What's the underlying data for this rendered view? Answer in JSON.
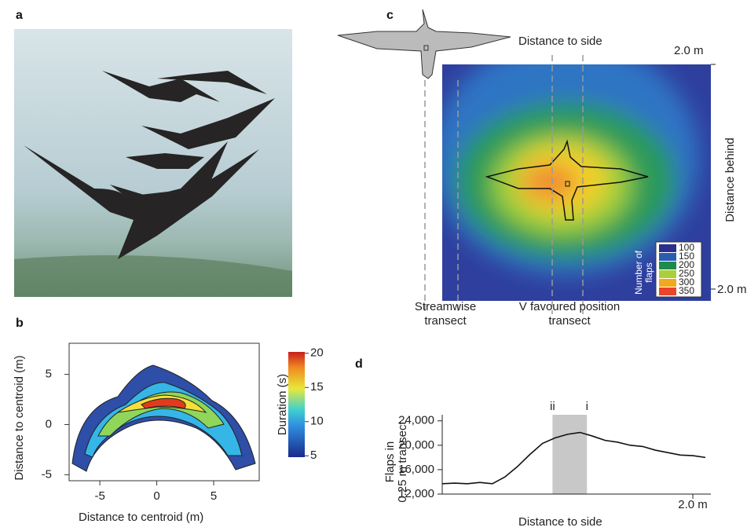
{
  "panels": {
    "a": {
      "label": "a"
    },
    "b": {
      "label": "b",
      "xlabel": "Distance to centroid (m)",
      "ylabel": "Distance to centroid (m)",
      "xlim": [
        -7.7,
        9
      ],
      "xticks": [
        -5,
        0,
        5
      ],
      "ylim": [
        -5.6,
        8.1
      ],
      "yticks": [
        -5,
        0,
        5
      ],
      "colorbar": {
        "label": "Duration (s)",
        "lim": [
          4.8,
          20.2
        ],
        "ticks": [
          5,
          10,
          15,
          20
        ]
      }
    },
    "c": {
      "label": "c",
      "top_label": "Distance to side",
      "top_right": "2.0 m",
      "right_label": "Distance behind",
      "bottom_right": "2.0 m",
      "streamwise": "Streamwise transect",
      "v_position": "V favoured position transect",
      "legend": {
        "title": "Number of flaps",
        "levels": [
          {
            "value": 100,
            "color": "#2b2e8c"
          },
          {
            "value": 150,
            "color": "#2a5db0"
          },
          {
            "value": 200,
            "color": "#1f8a4c"
          },
          {
            "value": 250,
            "color": "#a9cf3c"
          },
          {
            "value": 300,
            "color": "#f4a81d"
          },
          {
            "value": 350,
            "color": "#e8452c"
          }
        ]
      }
    },
    "d": {
      "label": "d",
      "ylabel_1": "Flaps in",
      "ylabel_2": "0.25 m transect",
      "xlabel": "Distance to side",
      "xlim": [
        0,
        2.144
      ],
      "xticks": [
        {
          "value": 2.0,
          "label": "2.0 m"
        }
      ],
      "ylim": [
        12000,
        25000
      ],
      "yticks": [
        {
          "value": 12000,
          "label": "12,000"
        },
        {
          "value": 16000,
          "label": "16,000"
        },
        {
          "value": 20000,
          "label": "20,000"
        },
        {
          "value": 24000,
          "label": "24,000"
        }
      ],
      "band": [
        0.88,
        1.155
      ],
      "band_labels": [
        "ii",
        "i"
      ],
      "x": [
        0,
        0.1,
        0.2,
        0.3,
        0.4,
        0.5,
        0.6,
        0.7,
        0.8,
        0.9,
        1.0,
        1.1,
        1.2,
        1.3,
        1.4,
        1.5,
        1.6,
        1.7,
        1.8,
        1.9,
        2.0,
        2.1
      ],
      "values": [
        13700,
        13800,
        13700,
        13900,
        13700,
        14800,
        16500,
        18500,
        20300,
        21200,
        21800,
        22100,
        21500,
        20800,
        20500,
        20000,
        19800,
        19200,
        18800,
        18400,
        18300,
        18000
      ]
    }
  }
}
